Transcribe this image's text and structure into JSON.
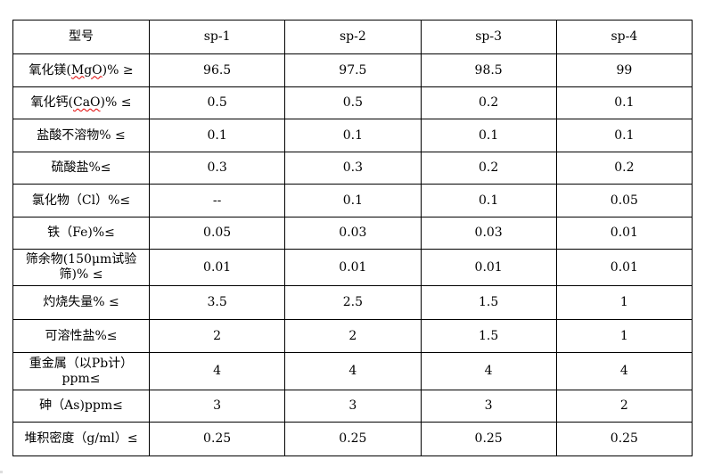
{
  "table": {
    "header": [
      "型号",
      "sp-1",
      "sp-2",
      "sp-3",
      "sp-4"
    ],
    "rows": [
      {
        "label": [
          {
            "t": "氧化镁("
          },
          {
            "t": "MgO",
            "spell": true
          },
          {
            "t": ")% ≥"
          }
        ],
        "values": [
          "96.5",
          "97.5",
          "98.5",
          "99"
        ]
      },
      {
        "label": [
          {
            "t": "氧化钙("
          },
          {
            "t": "CaO",
            "spell": true
          },
          {
            "t": ")% ≤"
          }
        ],
        "values": [
          "0.5",
          "0.5",
          "0.2",
          "0.1"
        ]
      },
      {
        "label": [
          {
            "t": "盐酸不溶物% ≤"
          }
        ],
        "values": [
          "0.1",
          "0.1",
          "0.1",
          "0.1"
        ]
      },
      {
        "label": [
          {
            "t": "硫酸盐%≤"
          }
        ],
        "values": [
          "0.3",
          "0.3",
          "0.2",
          "0.2"
        ]
      },
      {
        "label": [
          {
            "t": "氯化物（Cl）%≤"
          }
        ],
        "values": [
          "--",
          "0.1",
          "0.1",
          "0.05"
        ]
      },
      {
        "label": [
          {
            "t": "铁（Fe)%≤"
          }
        ],
        "values": [
          "0.05",
          "0.03",
          "0.03",
          "0.01"
        ]
      },
      {
        "label": [
          {
            "t": "筛余物(150μm试验筛)% ≤"
          }
        ],
        "values": [
          "0.01",
          "0.01",
          "0.01",
          "0.01"
        ]
      },
      {
        "label": [
          {
            "t": "灼烧失量% ≤"
          }
        ],
        "values": [
          "3.5",
          "2.5",
          "1.5",
          "1"
        ]
      },
      {
        "label": [
          {
            "t": "可溶性盐%≤"
          }
        ],
        "values": [
          "2",
          "2",
          "1.5",
          "1"
        ]
      },
      {
        "label": [
          {
            "t": "重金属（以Pb计）ppm≤"
          }
        ],
        "values": [
          "4",
          "4",
          "4",
          "4"
        ]
      },
      {
        "label": [
          {
            "t": "砷（As)ppm≤"
          }
        ],
        "values": [
          "3",
          "3",
          "3",
          "2"
        ]
      },
      {
        "label": [
          {
            "t": "堆积密度（g/ml）≤"
          }
        ],
        "values": [
          "0.25",
          "0.25",
          "0.25",
          "0.25"
        ]
      }
    ]
  }
}
